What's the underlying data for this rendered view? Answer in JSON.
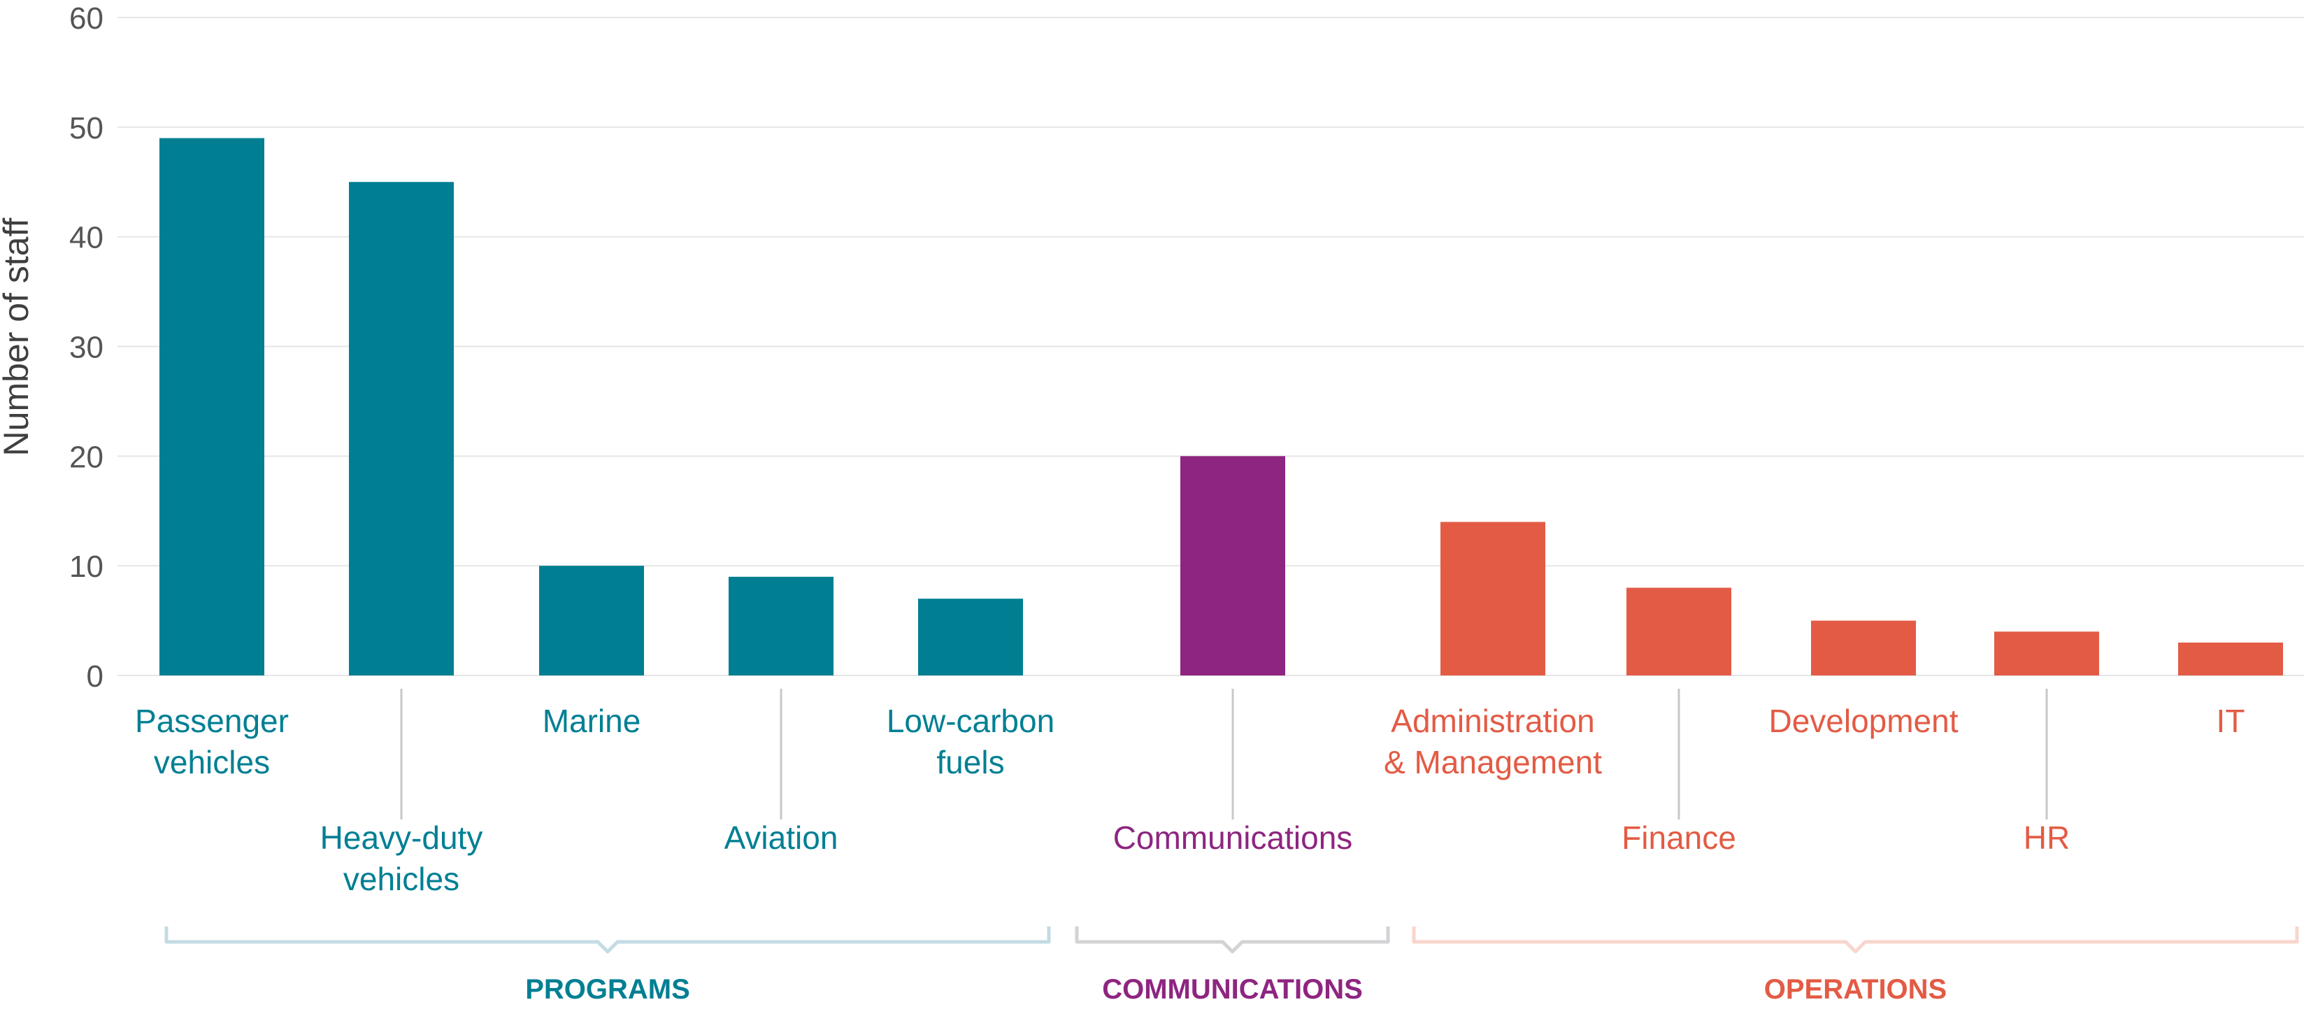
{
  "chart_data": {
    "type": "bar",
    "ylabel": "Number of staff",
    "ylim": [
      0,
      60
    ],
    "yticks": [
      0,
      10,
      20,
      30,
      40,
      50,
      60
    ],
    "grid": true,
    "categories": [
      "Passenger vehicles",
      "Heavy-duty vehicles",
      "Marine",
      "Aviation",
      "Low-carbon fuels",
      "Communications",
      "Administration & Management",
      "Finance",
      "Development",
      "HR",
      "IT"
    ],
    "category_label_lines": [
      [
        "Passenger",
        "vehicles"
      ],
      [
        "Heavy-duty",
        "vehicles"
      ],
      [
        "Marine"
      ],
      [
        "Aviation"
      ],
      [
        "Low-carbon",
        "fuels"
      ],
      [
        "Communications"
      ],
      [
        "Administration",
        "& Management"
      ],
      [
        "Finance"
      ],
      [
        "Development"
      ],
      [
        "HR"
      ],
      [
        "IT"
      ]
    ],
    "category_group": [
      0,
      0,
      0,
      0,
      0,
      1,
      2,
      2,
      2,
      2,
      2
    ],
    "values": [
      49,
      45,
      10,
      9,
      7,
      20,
      14,
      8,
      5,
      4,
      3
    ],
    "groups": [
      {
        "name": "PROGRAMS",
        "color": "#007F93",
        "bracket_color": "#C3DBE4"
      },
      {
        "name": "COMMUNICATIONS",
        "color": "#8E2580",
        "bracket_color": "#D3D3D6"
      },
      {
        "name": "OPERATIONS",
        "color": "#E35B45",
        "bracket_color": "#F8D6CC"
      }
    ],
    "gridline_color": "#E6E6E6"
  }
}
